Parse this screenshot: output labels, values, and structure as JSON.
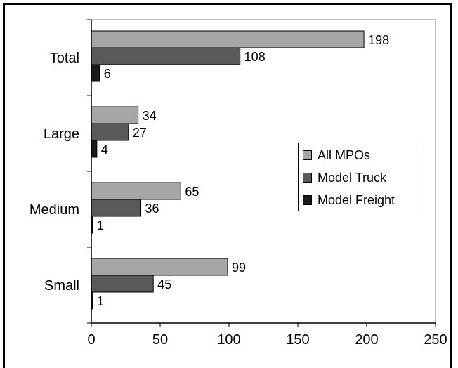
{
  "chart_data": {
    "type": "bar",
    "orientation": "horizontal",
    "categories": [
      "Total",
      "Large",
      "Medium",
      "Small"
    ],
    "series": [
      {
        "name": "All MPOs",
        "values": [
          198,
          34,
          65,
          99
        ],
        "color": "#a6a6a6"
      },
      {
        "name": "Model Truck",
        "values": [
          108,
          27,
          36,
          45
        ],
        "color": "#595959"
      },
      {
        "name": "Model Freight",
        "values": [
          6,
          4,
          1,
          1
        ],
        "color": "#1a1a1a"
      }
    ],
    "xlim": [
      0,
      250
    ],
    "xticks": [
      0,
      50,
      100,
      150,
      200,
      250
    ],
    "title": "",
    "xlabel": "",
    "ylabel": "",
    "grid": false,
    "data_labels": true,
    "legend_position": "right"
  }
}
